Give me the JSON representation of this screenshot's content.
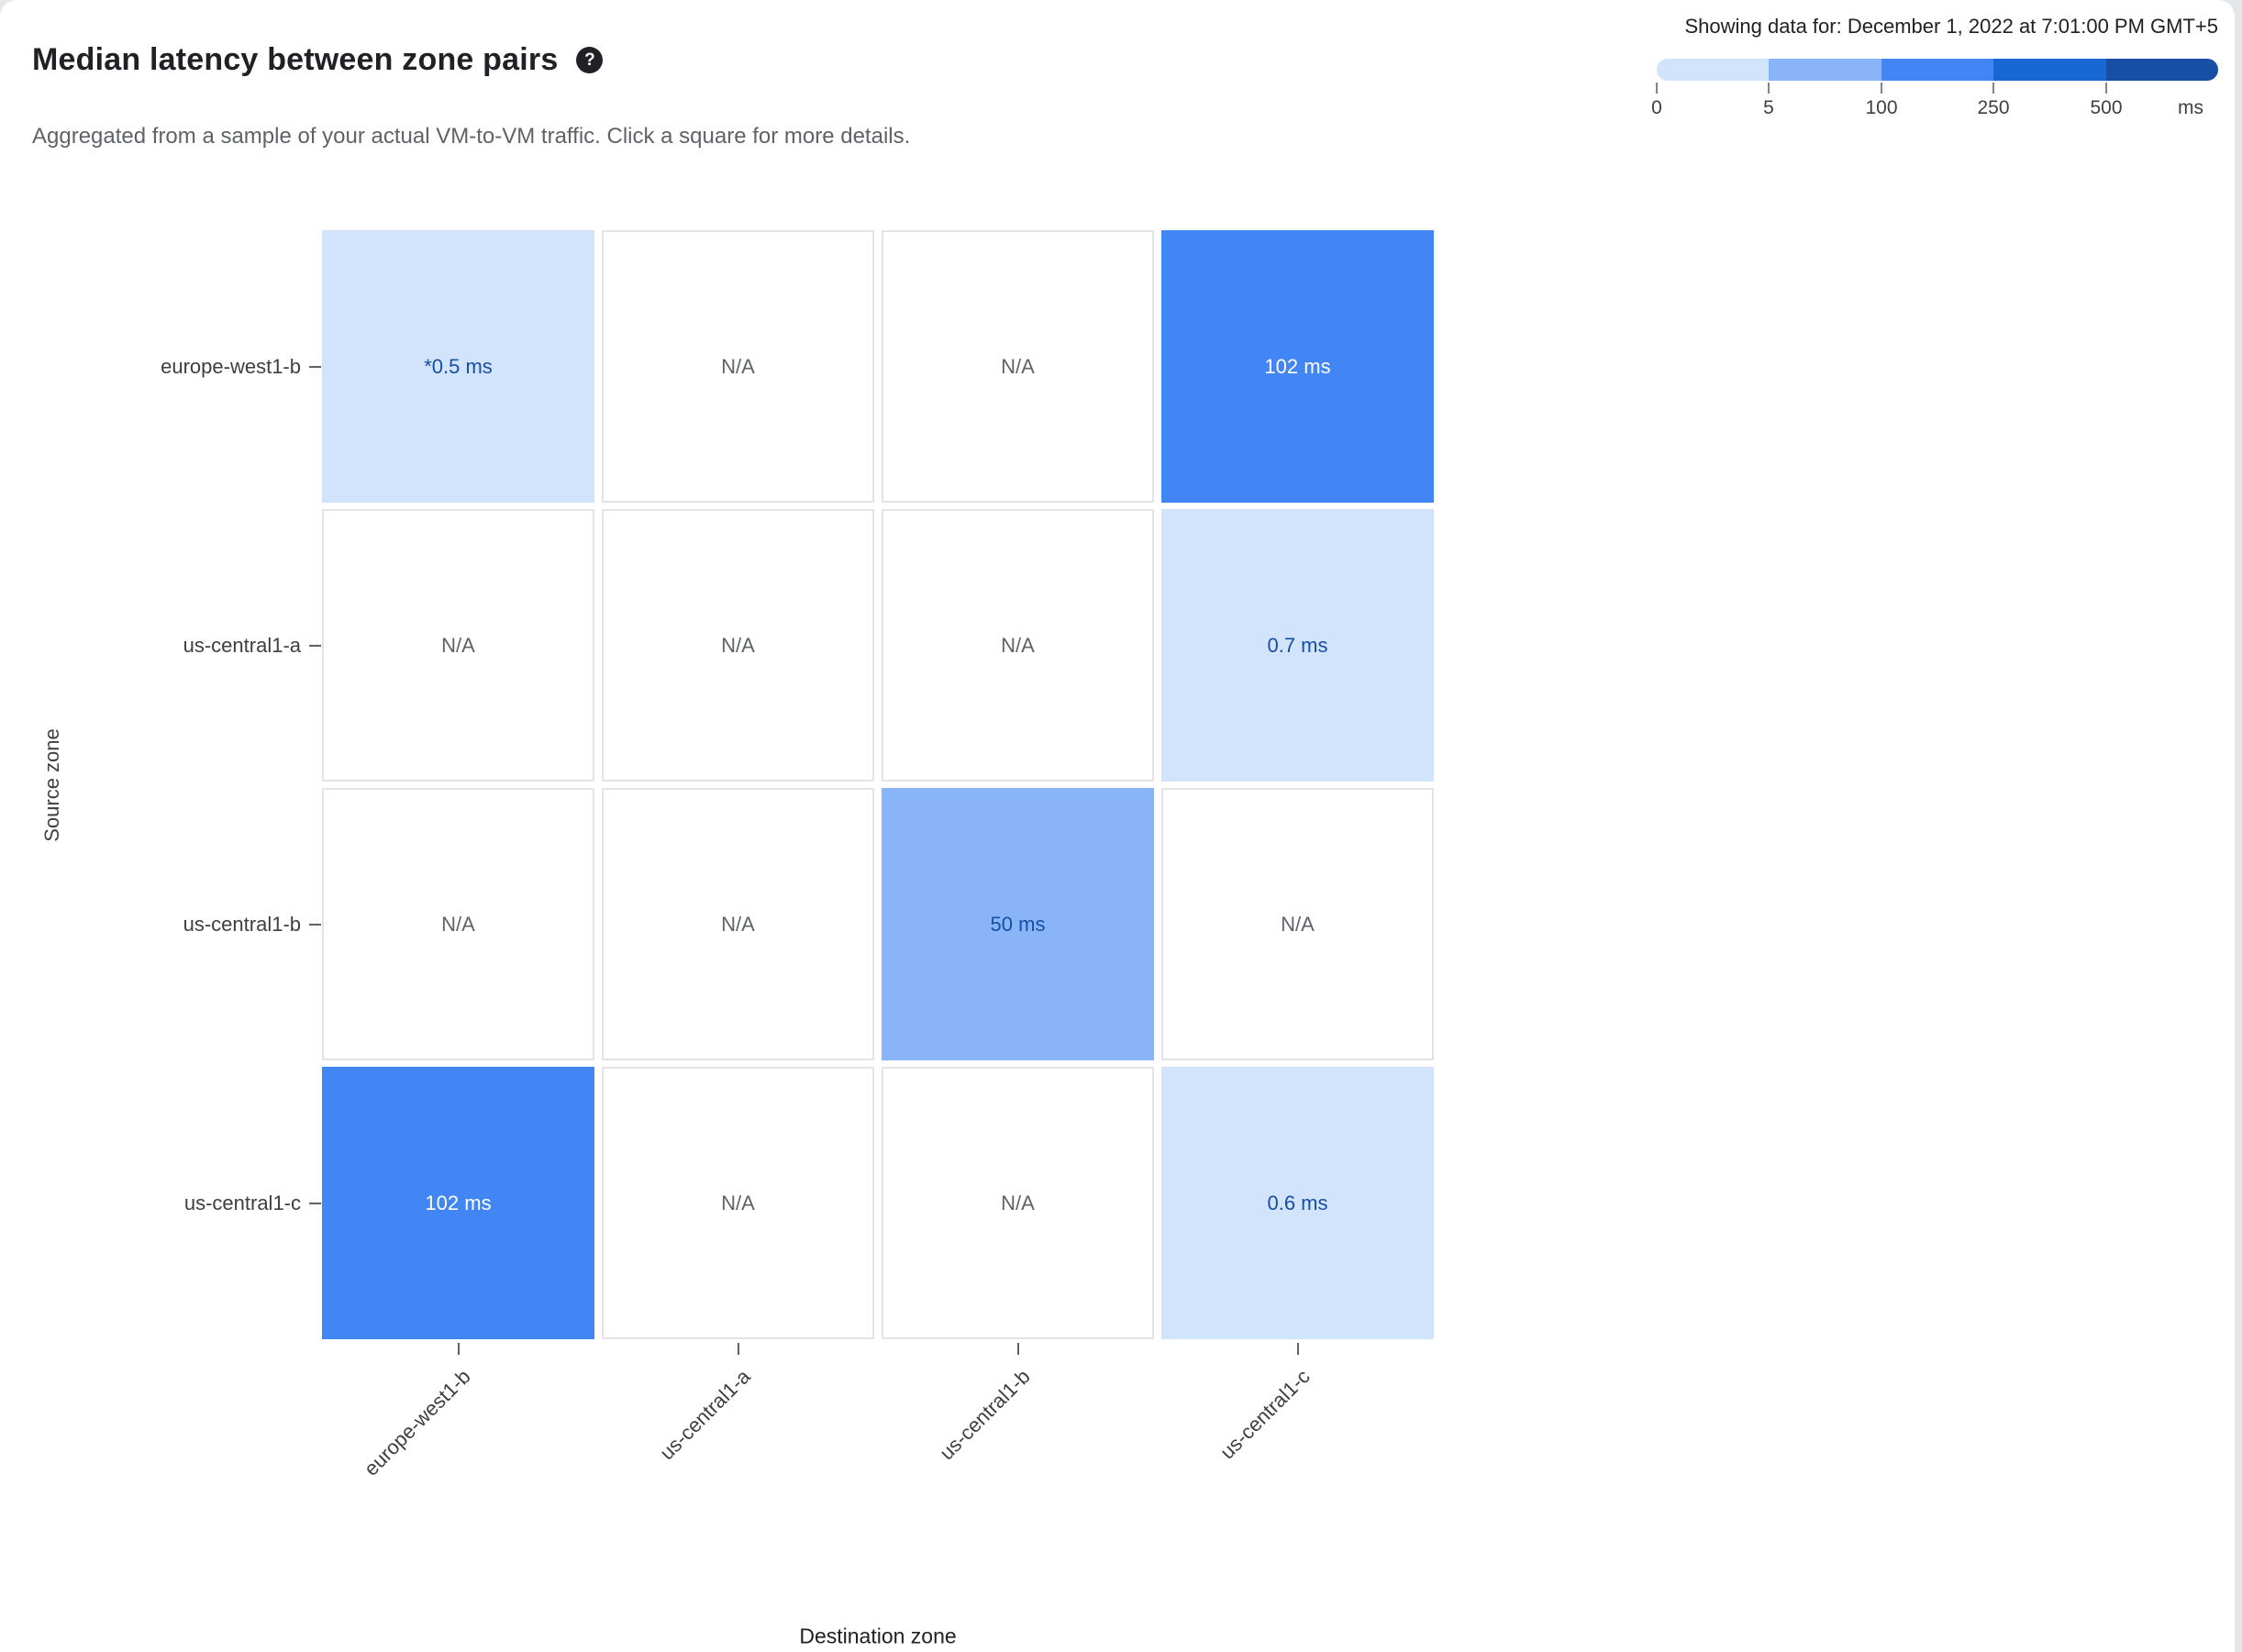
{
  "header": {
    "title": "Median latency between zone pairs",
    "help_icon": "?",
    "subtitle": "Aggregated from a sample of your actual VM-to-VM traffic. Click a square for more details.",
    "showing_data_for": "Showing data for: December 1, 2022 at 7:01:00 PM GMT+5"
  },
  "legend": {
    "ticks": [
      "0",
      "5",
      "100",
      "250",
      "500"
    ],
    "unit": "ms",
    "thresholds": [
      0,
      5,
      100,
      250,
      500
    ],
    "colors": [
      "#d2e3fc",
      "#8ab4f8",
      "#4285f4",
      "#1967d2",
      "#174ea6"
    ]
  },
  "chart_data": {
    "type": "heatmap",
    "title": "Median latency between zone pairs",
    "xlabel": "Destination zone",
    "ylabel": "Source zone",
    "rows": [
      "europe-west1-b",
      "us-central1-a",
      "us-central1-b",
      "us-central1-c"
    ],
    "columns": [
      "europe-west1-b",
      "us-central1-a",
      "us-central1-b",
      "us-central1-c"
    ],
    "cells": [
      [
        {
          "label": "*0.5 ms",
          "value_ms": 0.5
        },
        {
          "label": "N/A",
          "value_ms": null
        },
        {
          "label": "N/A",
          "value_ms": null
        },
        {
          "label": "102 ms",
          "value_ms": 102
        }
      ],
      [
        {
          "label": "N/A",
          "value_ms": null
        },
        {
          "label": "N/A",
          "value_ms": null
        },
        {
          "label": "N/A",
          "value_ms": null
        },
        {
          "label": "0.7 ms",
          "value_ms": 0.7
        }
      ],
      [
        {
          "label": "N/A",
          "value_ms": null
        },
        {
          "label": "N/A",
          "value_ms": null
        },
        {
          "label": "50 ms",
          "value_ms": 50
        },
        {
          "label": "N/A",
          "value_ms": null
        }
      ],
      [
        {
          "label": "102 ms",
          "value_ms": 102
        },
        {
          "label": "N/A",
          "value_ms": null
        },
        {
          "label": "N/A",
          "value_ms": null
        },
        {
          "label": "0.6 ms",
          "value_ms": 0.6
        }
      ]
    ],
    "cell_text_colors": {
      "na": "#5f6368",
      "low": "#174ea6",
      "high": "#ffffff"
    }
  }
}
